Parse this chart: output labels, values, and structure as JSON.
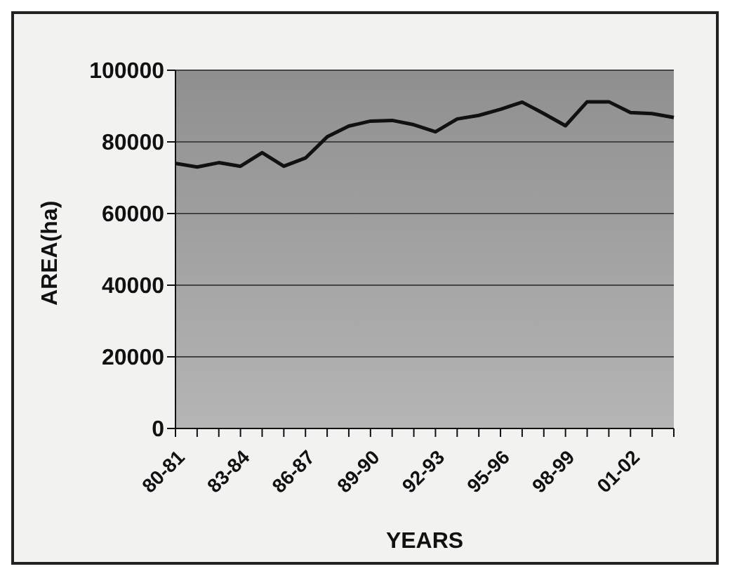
{
  "chart_data": {
    "type": "line",
    "xlabel": "YEARS",
    "ylabel": "AREA(ha)",
    "categories": [
      "80-81",
      null,
      null,
      "83-84",
      null,
      null,
      "86-87",
      null,
      null,
      "89-90",
      null,
      null,
      "92-93",
      null,
      null,
      "95-96",
      null,
      null,
      "98-99",
      null,
      null,
      "01-02",
      null,
      null
    ],
    "series": [
      {
        "color": "#111111",
        "values": [
          74000,
          73000,
          74200,
          73200,
          77000,
          73200,
          75500,
          81400,
          84400,
          85800,
          86000,
          84800,
          82800,
          86400,
          87400,
          89100,
          91100,
          87900,
          84500,
          91200,
          91200,
          88200,
          87900,
          86800
        ]
      }
    ],
    "ylim": [
      0,
      100000
    ],
    "yticks": [
      0,
      20000,
      40000,
      60000,
      80000,
      100000
    ],
    "grid": "y",
    "legend": false,
    "marker": "none",
    "line_style": "solid"
  }
}
